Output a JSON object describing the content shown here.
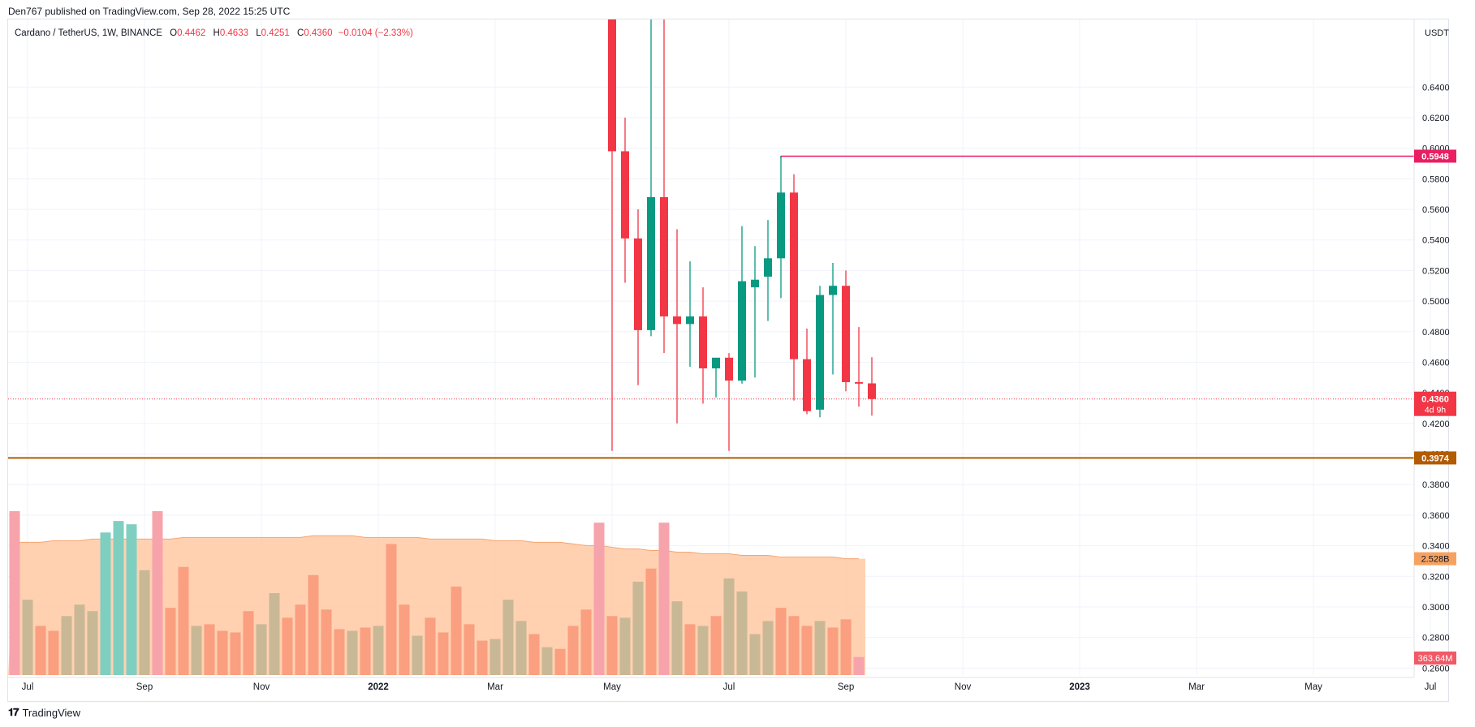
{
  "header": {
    "published_line": "Den767 published on TradingView.com, Sep 28, 2022 15:25 UTC"
  },
  "legend": {
    "symbol": "Cardano / TetherUS, 1W, BINANCE",
    "o_label": "O",
    "o_value": "0.4462",
    "h_label": "H",
    "h_value": "0.4633",
    "l_label": "L",
    "l_value": "0.4251",
    "c_label": "C",
    "c_value": "0.4360",
    "change": "−0.0104 (−2.33%)"
  },
  "footer": {
    "brand": "TradingView",
    "logo": "tradingview-logo-icon"
  },
  "colors": {
    "up": "#089981",
    "down": "#f23645",
    "resistance": "#e91e63",
    "support": "#b25b00",
    "volume_up": "#c9b896",
    "volume_down": "#fa9f80",
    "volume_ma": "#ffcca9"
  },
  "chart_data": {
    "type": "candlestick",
    "timeframe": "1W",
    "currency": "USDT",
    "ylim": [
      0.2554,
      0.6842
    ],
    "y_ticks": [
      "0.6400",
      "0.6200",
      "0.6000",
      "0.5800",
      "0.5600",
      "0.5400",
      "0.5200",
      "0.5000",
      "0.4800",
      "0.4600",
      "0.4400",
      "0.4200",
      "0.4000",
      "0.3800",
      "0.3600",
      "0.3400",
      "0.3200",
      "0.3000",
      "0.2800",
      "0.2600"
    ],
    "x_ticks": [
      "Jul",
      "Sep",
      "Nov",
      "2022",
      "Mar",
      "May",
      "Jul",
      "Sep",
      "Nov",
      "2023",
      "Mar",
      "May",
      "Jul"
    ],
    "x_tick_index": [
      1,
      10,
      19,
      28,
      37,
      46,
      55,
      64,
      73,
      82,
      91,
      100,
      109
    ],
    "candles": [
      {
        "i": 46,
        "o": 0.75,
        "h": 0.75,
        "l": 0.402,
        "c": 0.598
      },
      {
        "i": 47,
        "o": 0.598,
        "h": 0.62,
        "l": 0.512,
        "c": 0.541
      },
      {
        "i": 48,
        "o": 0.541,
        "h": 0.56,
        "l": 0.445,
        "c": 0.481
      },
      {
        "i": 49,
        "o": 0.481,
        "h": 0.75,
        "l": 0.477,
        "c": 0.568
      },
      {
        "i": 50,
        "o": 0.568,
        "h": 0.75,
        "l": 0.466,
        "c": 0.49
      },
      {
        "i": 51,
        "o": 0.49,
        "h": 0.547,
        "l": 0.42,
        "c": 0.485
      },
      {
        "i": 52,
        "o": 0.485,
        "h": 0.526,
        "l": 0.457,
        "c": 0.49
      },
      {
        "i": 53,
        "o": 0.49,
        "h": 0.509,
        "l": 0.433,
        "c": 0.456
      },
      {
        "i": 54,
        "o": 0.456,
        "h": 0.461,
        "l": 0.437,
        "c": 0.463
      },
      {
        "i": 55,
        "o": 0.463,
        "h": 0.466,
        "l": 0.402,
        "c": 0.448
      },
      {
        "i": 56,
        "o": 0.448,
        "h": 0.549,
        "l": 0.446,
        "c": 0.513
      },
      {
        "i": 57,
        "o": 0.509,
        "h": 0.536,
        "l": 0.45,
        "c": 0.514
      },
      {
        "i": 58,
        "o": 0.516,
        "h": 0.553,
        "l": 0.487,
        "c": 0.528
      },
      {
        "i": 59,
        "o": 0.528,
        "h": 0.595,
        "l": 0.502,
        "c": 0.571
      },
      {
        "i": 60,
        "o": 0.571,
        "h": 0.583,
        "l": 0.435,
        "c": 0.462
      },
      {
        "i": 61,
        "o": 0.462,
        "h": 0.482,
        "l": 0.426,
        "c": 0.428
      },
      {
        "i": 62,
        "o": 0.429,
        "h": 0.51,
        "l": 0.424,
        "c": 0.504
      },
      {
        "i": 63,
        "o": 0.504,
        "h": 0.525,
        "l": 0.452,
        "c": 0.51
      },
      {
        "i": 64,
        "o": 0.51,
        "h": 0.52,
        "l": 0.441,
        "c": 0.447
      },
      {
        "i": 65,
        "o": 0.447,
        "h": 0.483,
        "l": 0.431,
        "c": 0.446
      },
      {
        "i": 66,
        "o": 0.4462,
        "h": 0.4633,
        "l": 0.4251,
        "c": 0.436
      }
    ],
    "volume": {
      "ma_value_label": "2.528B",
      "last_value_label": "363.64M",
      "bars": [
        {
          "i": 0,
          "v": 1.0,
          "up": false
        },
        {
          "i": 1,
          "v": 0.46,
          "up": true
        },
        {
          "i": 2,
          "v": 0.3,
          "up": false
        },
        {
          "i": 3,
          "v": 0.27,
          "up": false
        },
        {
          "i": 4,
          "v": 0.36,
          "up": true
        },
        {
          "i": 5,
          "v": 0.43,
          "up": true
        },
        {
          "i": 6,
          "v": 0.39,
          "up": true
        },
        {
          "i": 7,
          "v": 0.87,
          "up": true
        },
        {
          "i": 8,
          "v": 0.94,
          "up": true
        },
        {
          "i": 9,
          "v": 0.92,
          "up": true
        },
        {
          "i": 10,
          "v": 0.64,
          "up": true
        },
        {
          "i": 11,
          "v": 1.0,
          "up": false
        },
        {
          "i": 12,
          "v": 0.41,
          "up": false
        },
        {
          "i": 13,
          "v": 0.66,
          "up": false
        },
        {
          "i": 14,
          "v": 0.3,
          "up": true
        },
        {
          "i": 15,
          "v": 0.31,
          "up": false
        },
        {
          "i": 16,
          "v": 0.27,
          "up": false
        },
        {
          "i": 17,
          "v": 0.26,
          "up": false
        },
        {
          "i": 18,
          "v": 0.39,
          "up": false
        },
        {
          "i": 19,
          "v": 0.31,
          "up": true
        },
        {
          "i": 20,
          "v": 0.5,
          "up": true
        },
        {
          "i": 21,
          "v": 0.35,
          "up": false
        },
        {
          "i": 22,
          "v": 0.43,
          "up": false
        },
        {
          "i": 23,
          "v": 0.61,
          "up": false
        },
        {
          "i": 24,
          "v": 0.4,
          "up": false
        },
        {
          "i": 25,
          "v": 0.28,
          "up": false
        },
        {
          "i": 26,
          "v": 0.27,
          "up": true
        },
        {
          "i": 27,
          "v": 0.29,
          "up": false
        },
        {
          "i": 28,
          "v": 0.3,
          "up": true
        },
        {
          "i": 29,
          "v": 0.8,
          "up": false
        },
        {
          "i": 30,
          "v": 0.43,
          "up": false
        },
        {
          "i": 31,
          "v": 0.24,
          "up": true
        },
        {
          "i": 32,
          "v": 0.35,
          "up": false
        },
        {
          "i": 33,
          "v": 0.26,
          "up": false
        },
        {
          "i": 34,
          "v": 0.54,
          "up": false
        },
        {
          "i": 35,
          "v": 0.31,
          "up": false
        },
        {
          "i": 36,
          "v": 0.21,
          "up": false
        },
        {
          "i": 37,
          "v": 0.22,
          "up": true
        },
        {
          "i": 38,
          "v": 0.46,
          "up": true
        },
        {
          "i": 39,
          "v": 0.33,
          "up": true
        },
        {
          "i": 40,
          "v": 0.25,
          "up": false
        },
        {
          "i": 41,
          "v": 0.17,
          "up": true
        },
        {
          "i": 42,
          "v": 0.16,
          "up": false
        },
        {
          "i": 43,
          "v": 0.3,
          "up": false
        },
        {
          "i": 44,
          "v": 0.4,
          "up": false
        },
        {
          "i": 45,
          "v": 0.93,
          "up": false
        },
        {
          "i": 46,
          "v": 0.36,
          "up": false
        },
        {
          "i": 47,
          "v": 0.35,
          "up": true
        },
        {
          "i": 48,
          "v": 0.57,
          "up": true
        },
        {
          "i": 49,
          "v": 0.65,
          "up": false
        },
        {
          "i": 50,
          "v": 0.93,
          "up": false
        },
        {
          "i": 51,
          "v": 0.45,
          "up": true
        },
        {
          "i": 52,
          "v": 0.31,
          "up": false
        },
        {
          "i": 53,
          "v": 0.3,
          "up": true
        },
        {
          "i": 54,
          "v": 0.36,
          "up": false
        },
        {
          "i": 55,
          "v": 0.59,
          "up": true
        },
        {
          "i": 56,
          "v": 0.51,
          "up": true
        },
        {
          "i": 57,
          "v": 0.25,
          "up": true
        },
        {
          "i": 58,
          "v": 0.33,
          "up": true
        },
        {
          "i": 59,
          "v": 0.41,
          "up": false
        },
        {
          "i": 60,
          "v": 0.36,
          "up": false
        },
        {
          "i": 61,
          "v": 0.3,
          "up": false
        },
        {
          "i": 62,
          "v": 0.33,
          "up": true
        },
        {
          "i": 63,
          "v": 0.29,
          "up": false
        },
        {
          "i": 64,
          "v": 0.34,
          "up": false
        },
        {
          "i": 65,
          "v": 0.11,
          "up": false
        }
      ],
      "ma": [
        0.81,
        0.81,
        0.81,
        0.82,
        0.82,
        0.82,
        0.83,
        0.83,
        0.83,
        0.83,
        0.83,
        0.83,
        0.83,
        0.84,
        0.84,
        0.84,
        0.84,
        0.84,
        0.84,
        0.84,
        0.84,
        0.84,
        0.84,
        0.85,
        0.85,
        0.85,
        0.85,
        0.84,
        0.84,
        0.84,
        0.84,
        0.84,
        0.83,
        0.83,
        0.83,
        0.83,
        0.83,
        0.82,
        0.82,
        0.82,
        0.81,
        0.81,
        0.81,
        0.8,
        0.79,
        0.79,
        0.78,
        0.77,
        0.77,
        0.76,
        0.76,
        0.75,
        0.75,
        0.74,
        0.74,
        0.74,
        0.73,
        0.73,
        0.73,
        0.72,
        0.72,
        0.72,
        0.72,
        0.72,
        0.71,
        0.71
      ]
    },
    "levels": [
      {
        "value": 0.5948,
        "label": "0.5948",
        "type": "resistance",
        "from_index": 59
      },
      {
        "value": 0.3974,
        "label": "0.3974",
        "type": "support",
        "from_index": 0
      }
    ],
    "last_price": {
      "value": 0.436,
      "label": "0.4360",
      "countdown": "4d 9h"
    }
  }
}
